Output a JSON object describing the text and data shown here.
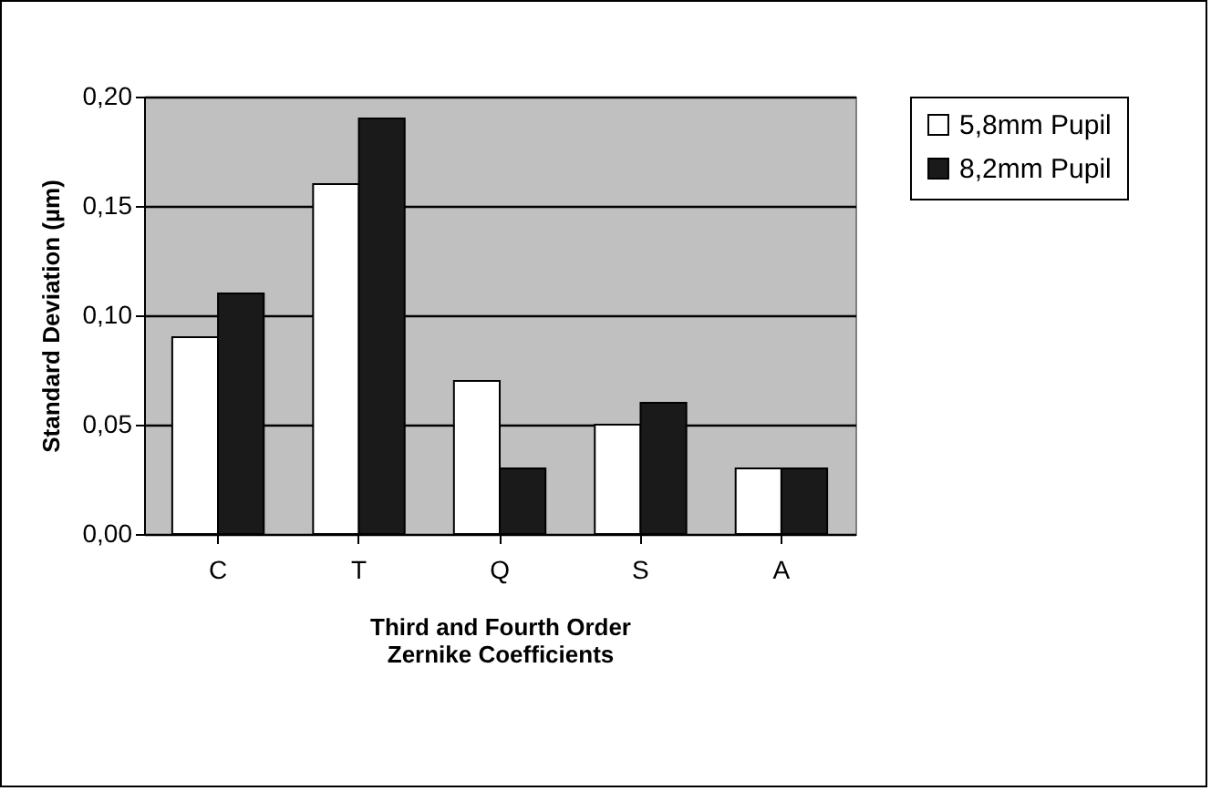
{
  "chart_data": {
    "type": "bar",
    "xlabel": "Third and Fourth Order\nZernike Coefficients",
    "ylabel": "Standard Deviation (µm)",
    "categories": [
      "C",
      "T",
      "Q",
      "S",
      "A"
    ],
    "series": [
      {
        "name": "5,8mm Pupil",
        "color": "#ffffff",
        "values": [
          0.09,
          0.16,
          0.07,
          0.05,
          0.03
        ]
      },
      {
        "name": "8,2mm Pupil",
        "color": "#1a1a1a",
        "values": [
          0.11,
          0.19,
          0.03,
          0.06,
          0.03
        ]
      }
    ],
    "ylim": [
      0,
      0.2
    ],
    "yticks": [
      {
        "value": 0,
        "label": "0,00"
      },
      {
        "value": 0.05,
        "label": "0,05"
      },
      {
        "value": 0.1,
        "label": "0,10"
      },
      {
        "value": 0.15,
        "label": "0,15"
      },
      {
        "value": 0.2,
        "label": "0,20"
      }
    ],
    "grid": "y",
    "legend": "right"
  }
}
